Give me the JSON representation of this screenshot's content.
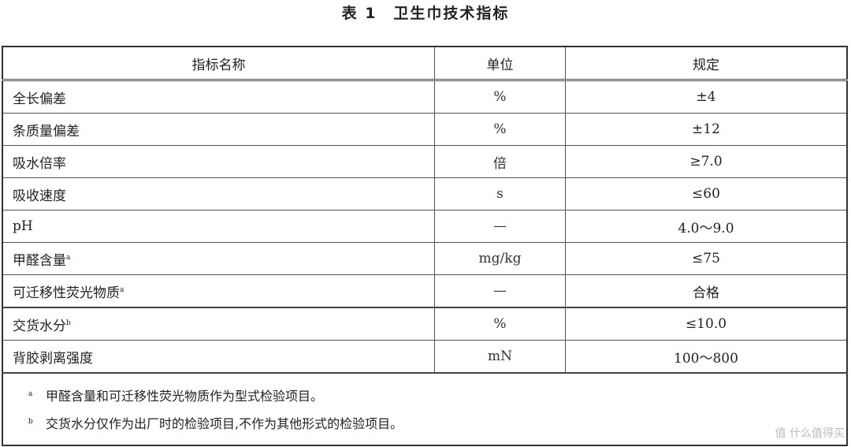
{
  "title": "表 1　卫生巾技术指标",
  "headers": [
    "指标名称",
    "单位",
    "规定"
  ],
  "rows": [
    {
      "name": "全长偏差",
      "mark": "",
      "unit": "%",
      "spec": "±4"
    },
    {
      "name": "条质量偏差",
      "mark": "",
      "unit": "%",
      "spec": "±12"
    },
    {
      "name": "吸水倍率",
      "mark": "",
      "unit": "倍",
      "spec": "≥7.0"
    },
    {
      "name": "吸收速度",
      "mark": "",
      "unit": "s",
      "spec": "≤60"
    },
    {
      "name": "pH",
      "mark": "",
      "unit": "—",
      "spec": "4.0～9.0"
    },
    {
      "name": "甲醛含量",
      "mark": "a",
      "unit": "mg/kg",
      "spec": "≤75"
    },
    {
      "name": "可迁移性荧光物质",
      "mark": "a",
      "unit": "—",
      "spec": "合格"
    },
    {
      "name": "交货水分",
      "mark": "b",
      "unit": "%",
      "spec": "≤10.0"
    },
    {
      "name": "背胶剥离强度",
      "mark": "",
      "unit": "mN",
      "spec": "100～800"
    }
  ],
  "footnotes": [
    {
      "mark": "a",
      "text": "甲醛含量和可迁移性荧光物质作为型式检验项目。"
    },
    {
      "mark": "b",
      "text": "交货水分仅作为出厂时的检验项目,不作为其他形式的检验项目。"
    }
  ],
  "watermark": "值 什么值得买"
}
